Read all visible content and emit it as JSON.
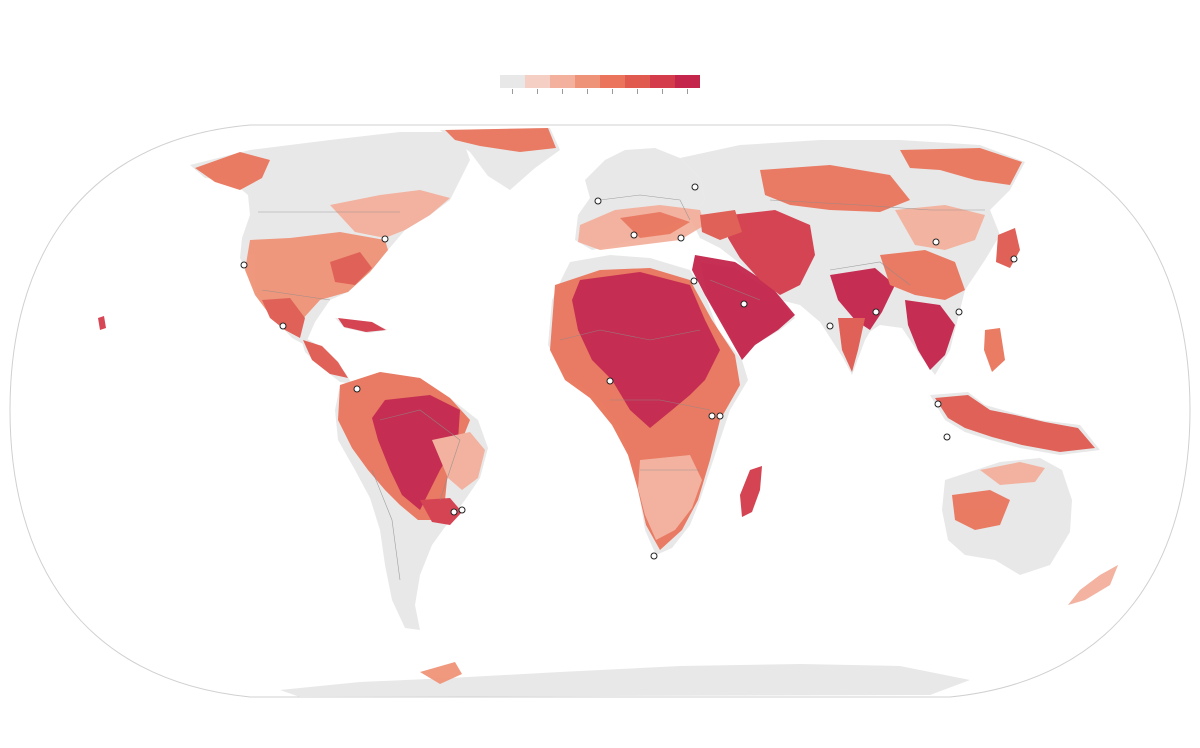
{
  "legend": {
    "colors": [
      "#e8e8e8",
      "#f6cfc4",
      "#f3b09c",
      "#ef9378",
      "#ea755c",
      "#e05a50",
      "#d43c4c",
      "#c4254b"
    ],
    "tick_count": 8
  },
  "palette": {
    "land_base": "#e8e8e8",
    "ocean": "#ffffff",
    "border": "#8c8c8c",
    "graticule_outline": "#d0d0d0",
    "city_marker_fill": "#ffffff",
    "city_marker_stroke": "#222222"
  },
  "city_marker_count": 26
}
